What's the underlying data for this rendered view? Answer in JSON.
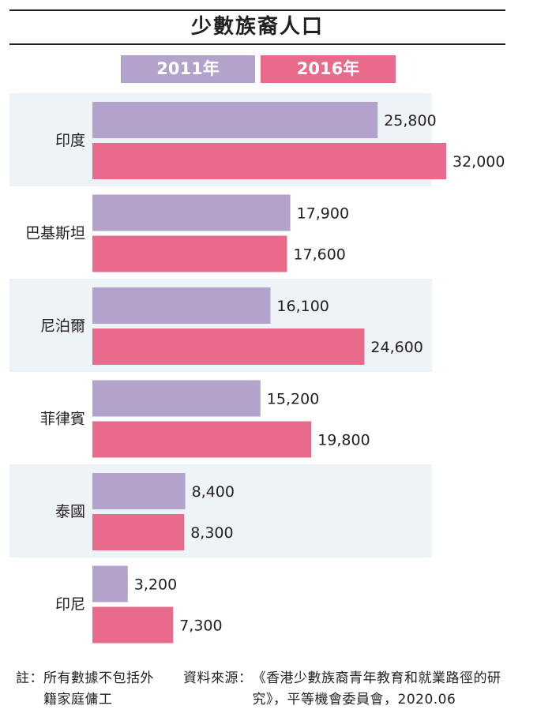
{
  "title": "少數族裔人口",
  "colors": {
    "series_2011": "#b3a2cc",
    "series_2016": "#e96b8c",
    "band": "#eef3f8",
    "text": "#231f20"
  },
  "chart_data": {
    "type": "bar",
    "orientation": "horizontal",
    "categories": [
      "印度",
      "巴基斯坦",
      "尼泊爾",
      "菲律賓",
      "泰國",
      "印尼"
    ],
    "series": [
      {
        "name": "2011年",
        "values": [
          25800,
          17900,
          16100,
          15200,
          8400,
          3200
        ],
        "labels": [
          "25,800",
          "17,900",
          "16,100",
          "15,200",
          "8,400",
          "3,200"
        ]
      },
      {
        "name": "2016年",
        "values": [
          32000,
          17600,
          24600,
          19800,
          8300,
          7300
        ],
        "labels": [
          "32,000",
          "17,600",
          "24,600",
          "19,800",
          "8,300",
          "7,300"
        ]
      }
    ],
    "xlim": [
      0,
      32000
    ],
    "legend": "top",
    "grid": false
  },
  "footnote": {
    "label": "註：",
    "text": "所有數據不包括外籍家庭傭工"
  },
  "source": {
    "label": "資料來源：",
    "text": "《香港少數族裔青年教育和就業路徑的研究》，平等機會委員會，2020.06"
  }
}
